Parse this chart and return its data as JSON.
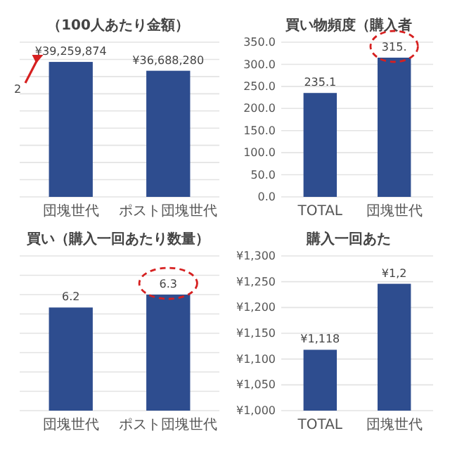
{
  "chart_data": [
    {
      "type": "bar",
      "title": "（100人あたり金額）",
      "categories": [
        "団塊世代",
        "ポスト団塊世代"
      ],
      "values": [
        39259874,
        36688280
      ],
      "value_labels": [
        "¥39,259,874",
        "¥36,688,280"
      ],
      "color": "#2e4d8f",
      "ylim": [
        0,
        45000000
      ],
      "yticks": [
        {
          "value": 0,
          "label": null
        },
        {
          "value": 5000000,
          "label": null
        },
        {
          "value": 10000000,
          "label": null
        },
        {
          "value": 15000000,
          "label": null
        },
        {
          "value": 20000000,
          "label": null
        },
        {
          "value": 25000000,
          "label": null
        },
        {
          "value": 30000000,
          "label": null
        },
        {
          "value": 35000000,
          "label": null
        },
        {
          "value": 40000000,
          "label": null
        },
        {
          "value": 45000000,
          "label": null
        }
      ],
      "grid": "y",
      "tick_labels": "x",
      "annotations": [
        "2"
      ]
    },
    {
      "type": "bar",
      "title": "買い物頻度（購入者",
      "categories": [
        "TOTAL",
        "団塊世代"
      ],
      "values": [
        235.1,
        315
      ],
      "value_labels": [
        "235.1",
        "315."
      ],
      "color": "#2e4d8f",
      "ylim": [
        0,
        350
      ],
      "yticks": [
        {
          "value": 0,
          "label": "0.0"
        },
        {
          "value": 50,
          "label": "50.0"
        },
        {
          "value": 100,
          "label": "100.0"
        },
        {
          "value": 150,
          "label": "150.0"
        },
        {
          "value": 200,
          "label": "200.0"
        },
        {
          "value": 250,
          "label": "250.0"
        },
        {
          "value": 300,
          "label": "300.0"
        },
        {
          "value": 350,
          "label": "350.0"
        }
      ],
      "grid": "y"
    },
    {
      "type": "bar",
      "title": "買い（購入一回あたり数量）",
      "categories": [
        "団塊世代",
        "ポスト団塊世代"
      ],
      "values": [
        6.2,
        6.3
      ],
      "data_labels": true,
      "color": "#2e4d8f",
      "ylim": [
        5.4,
        6.6
      ],
      "yticks": [
        {
          "value": 5.4,
          "label": null
        },
        {
          "value": 5.55,
          "label": null
        },
        {
          "value": 5.7,
          "label": null
        },
        {
          "value": 5.85,
          "label": null
        },
        {
          "value": 6,
          "label": null
        },
        {
          "value": 6.15,
          "label": null
        },
        {
          "value": 6.3,
          "label": null
        },
        {
          "value": 6.45,
          "label": null
        },
        {
          "value": 6.6,
          "label": null
        }
      ],
      "grid": "y",
      "tick_labels": "x"
    },
    {
      "type": "bar",
      "title": "購入一回あた",
      "categories": [
        "TOTAL",
        "団塊世代"
      ],
      "values": [
        1118,
        1246
      ],
      "value_labels": [
        "¥1,118",
        null
      ],
      "annotations": [
        {
          "text": "¥1,2",
          "x": "団塊世代",
          "y": 1246
        }
      ],
      "color": "#2e4d8f",
      "ylim": [
        1000,
        1300
      ],
      "yticks": [
        {
          "value": 1000,
          "label": "¥1,000"
        },
        {
          "value": 1050,
          "label": "¥1,050"
        },
        {
          "value": 1100,
          "label": "¥1,100"
        },
        {
          "value": 1150,
          "label": "¥1,150"
        },
        {
          "value": 1200,
          "label": "¥1,200"
        },
        {
          "value": 1250,
          "label": "¥1,250"
        },
        {
          "value": 1300,
          "label": "¥1,300"
        }
      ],
      "grid": "y"
    }
  ]
}
